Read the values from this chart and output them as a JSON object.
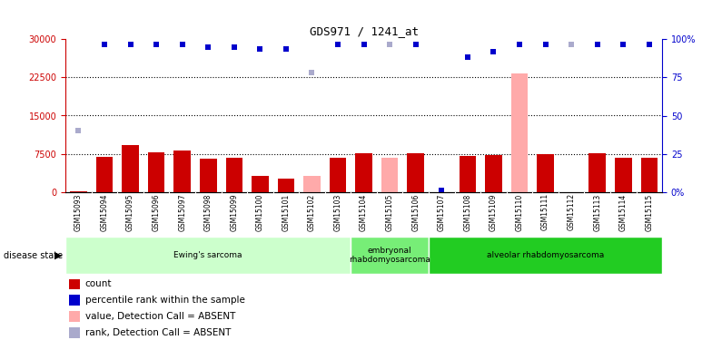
{
  "title": "GDS971 / 1241_at",
  "samples": [
    "GSM15093",
    "GSM15094",
    "GSM15095",
    "GSM15096",
    "GSM15097",
    "GSM15098",
    "GSM15099",
    "GSM15100",
    "GSM15101",
    "GSM15102",
    "GSM15103",
    "GSM15104",
    "GSM15105",
    "GSM15106",
    "GSM15107",
    "GSM15108",
    "GSM15109",
    "GSM15110",
    "GSM15111",
    "GSM15112",
    "GSM15113",
    "GSM15114",
    "GSM15115"
  ],
  "count_values": [
    200,
    7000,
    9200,
    7800,
    8100,
    6600,
    6800,
    3200,
    2700,
    3200,
    6700,
    7700,
    6800,
    7700,
    0,
    7100,
    7300,
    23200,
    7400,
    0,
    7700,
    6700,
    6700
  ],
  "count_absent": [
    false,
    false,
    false,
    false,
    false,
    false,
    false,
    false,
    false,
    true,
    false,
    false,
    true,
    false,
    false,
    false,
    false,
    true,
    false,
    false,
    false,
    false,
    false
  ],
  "rank_values": [
    12000,
    29000,
    29000,
    29000,
    29000,
    28500,
    28500,
    28000,
    28000,
    23500,
    29000,
    29000,
    29000,
    29000,
    300,
    26500,
    27500,
    29000,
    29000,
    29000,
    29000,
    29000,
    29000
  ],
  "rank_absent": [
    true,
    false,
    false,
    false,
    false,
    false,
    false,
    false,
    false,
    true,
    false,
    false,
    true,
    false,
    false,
    false,
    false,
    false,
    false,
    true,
    false,
    false,
    false
  ],
  "ylim_left": [
    0,
    30000
  ],
  "ylim_right": [
    0,
    100
  ],
  "yticks_left": [
    0,
    7500,
    15000,
    22500,
    30000
  ],
  "yticks_right": [
    0,
    25,
    50,
    75,
    100
  ],
  "ytick_labels_right": [
    "0%",
    "25",
    "50",
    "75",
    "100%"
  ],
  "color_red": "#cc0000",
  "color_pink": "#ffaaaa",
  "color_blue": "#0000cc",
  "color_lightblue": "#aaaacc",
  "color_grey_bg": "#c8c8c8",
  "disease_groups": [
    {
      "label": "Ewing's sarcoma",
      "start": 0,
      "end": 10,
      "color": "#ccffcc"
    },
    {
      "label": "embryonal\nrhabdomyosarcoma",
      "start": 11,
      "end": 13,
      "color": "#77ee77"
    },
    {
      "label": "alveolar rhabdomyosarcoma",
      "start": 14,
      "end": 22,
      "color": "#22cc22"
    }
  ],
  "legend_labels": [
    "count",
    "percentile rank within the sample",
    "value, Detection Call = ABSENT",
    "rank, Detection Call = ABSENT"
  ],
  "legend_colors": [
    "#cc0000",
    "#0000cc",
    "#ffaaaa",
    "#aaaacc"
  ]
}
